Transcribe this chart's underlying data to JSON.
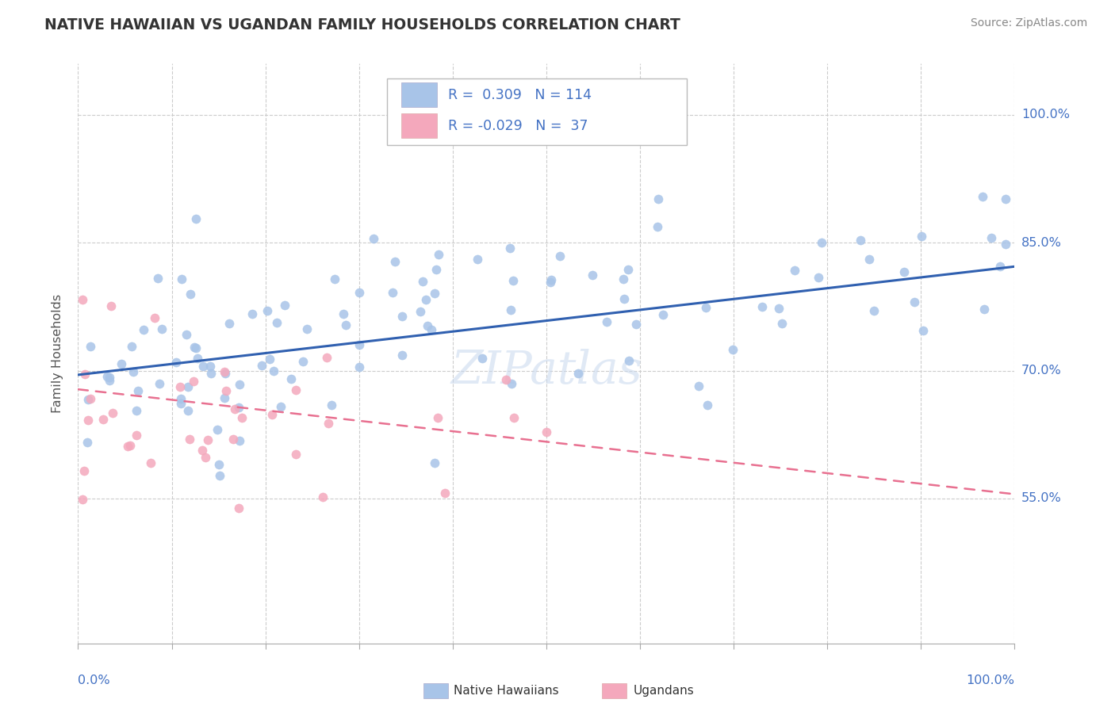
{
  "title": "NATIVE HAWAIIAN VS UGANDAN FAMILY HOUSEHOLDS CORRELATION CHART",
  "source": "Source: ZipAtlas.com",
  "ylabel": "Family Households",
  "r_blue": "0.309",
  "n_blue": "114",
  "r_pink": "-0.029",
  "n_pink": "37",
  "blue_scatter_color": "#a8c4e8",
  "pink_scatter_color": "#f4a8bc",
  "blue_line_color": "#3060b0",
  "pink_line_color": "#e87090",
  "axis_label_color": "#4472c4",
  "title_color": "#333333",
  "source_color": "#888888",
  "watermark": "ZIPatlas",
  "background": "#ffffff",
  "grid_color": "#cccccc",
  "ytick_positions": [
    0.55,
    0.7,
    0.85,
    1.0
  ],
  "ytick_labels": [
    "55.0%",
    "70.0%",
    "85.0%",
    "100.0%"
  ],
  "xlim": [
    0.0,
    1.0
  ],
  "ylim": [
    0.38,
    1.06
  ],
  "blue_trend_x": [
    0.0,
    1.0
  ],
  "blue_trend_y": [
    0.695,
    0.822
  ],
  "pink_trend_x": [
    0.0,
    1.0
  ],
  "pink_trend_y": [
    0.678,
    0.555
  ]
}
